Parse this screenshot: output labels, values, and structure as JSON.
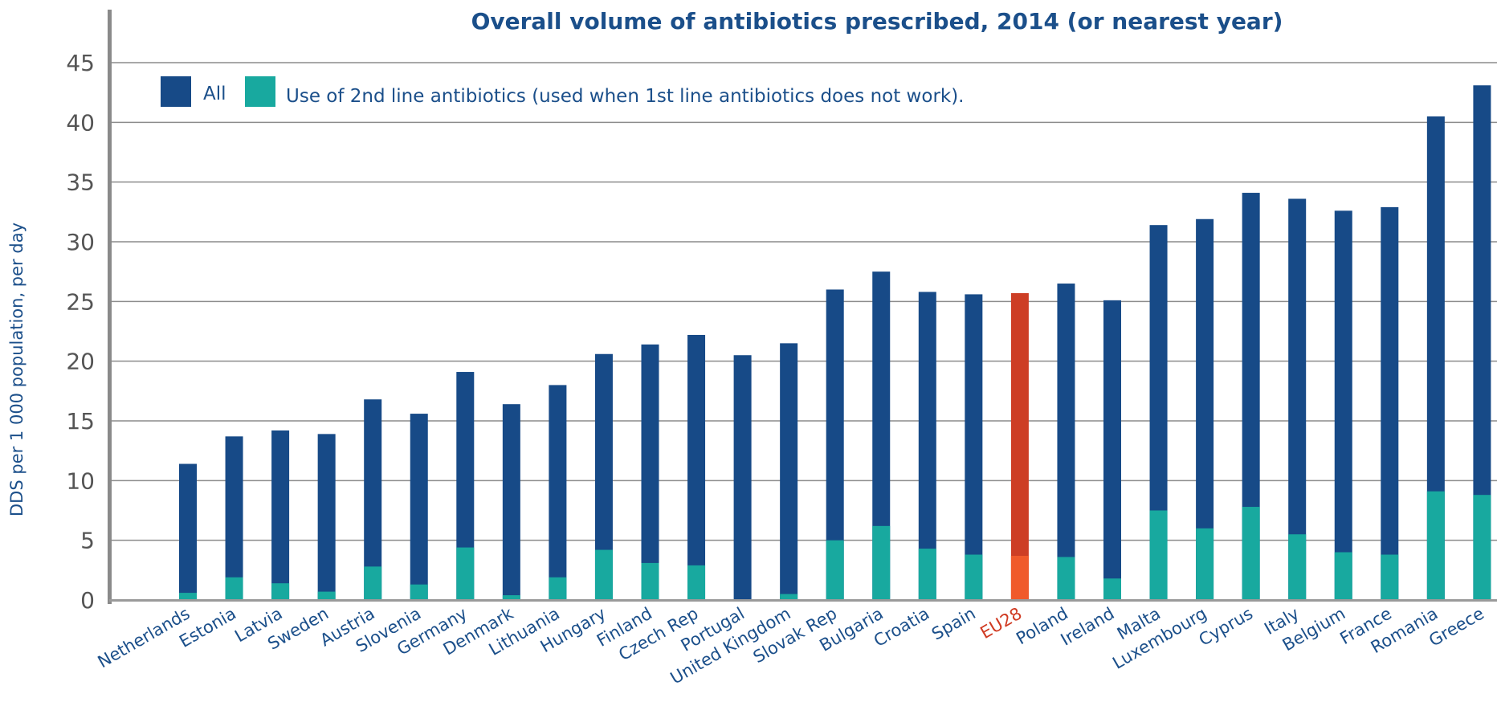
{
  "chart_data": {
    "type": "bar",
    "title": "Overall volume of antibiotics prescribed, 2014 (or nearest year)",
    "xlabel": "",
    "ylabel": "DDS per 1 000 population, per day",
    "ylim": [
      0,
      45
    ],
    "yticks": [
      0,
      5,
      10,
      15,
      20,
      25,
      30,
      35,
      40,
      45
    ],
    "grid": true,
    "legend_position": "top-left",
    "categories": [
      "Netherlands",
      "Estonia",
      "Latvia",
      "Sweden",
      "Austria",
      "Slovenia",
      "Germany",
      "Denmark",
      "Lithuania",
      "Hungary",
      "Finland",
      "Czech Rep",
      "Portugal",
      "United Kingdom",
      "Slovak Rep",
      "Bulgaria",
      "Croatia",
      "Spain",
      "EU28",
      "Poland",
      "Ireland",
      "Malta",
      "Luxembourg",
      "Cyprus",
      "Italy",
      "Belgium",
      "France",
      "Romania",
      "Greece"
    ],
    "highlight_category": "EU28",
    "series": [
      {
        "name": "All",
        "color": "#174a87",
        "highlight_color": "#cd3e25",
        "values": [
          11.4,
          13.7,
          14.2,
          13.9,
          16.8,
          15.6,
          19.1,
          16.4,
          18.0,
          20.6,
          21.4,
          22.2,
          20.5,
          21.5,
          26.0,
          27.5,
          25.8,
          25.6,
          25.7,
          26.5,
          25.1,
          31.4,
          31.9,
          34.1,
          33.6,
          32.6,
          32.9,
          40.5,
          43.1
        ]
      },
      {
        "name": "Use of 2nd line antibiotics (used when 1st line antibiotics does not work).",
        "color": "#18a99f",
        "highlight_color": "#f05a2b",
        "values": [
          0.6,
          1.9,
          1.4,
          0.7,
          2.8,
          1.3,
          4.4,
          0.4,
          1.9,
          4.2,
          3.1,
          2.9,
          0.0,
          0.5,
          5.0,
          6.2,
          4.3,
          3.8,
          3.7,
          3.6,
          1.8,
          7.5,
          6.0,
          7.8,
          5.5,
          4.0,
          3.8,
          9.1,
          8.8
        ]
      }
    ]
  }
}
